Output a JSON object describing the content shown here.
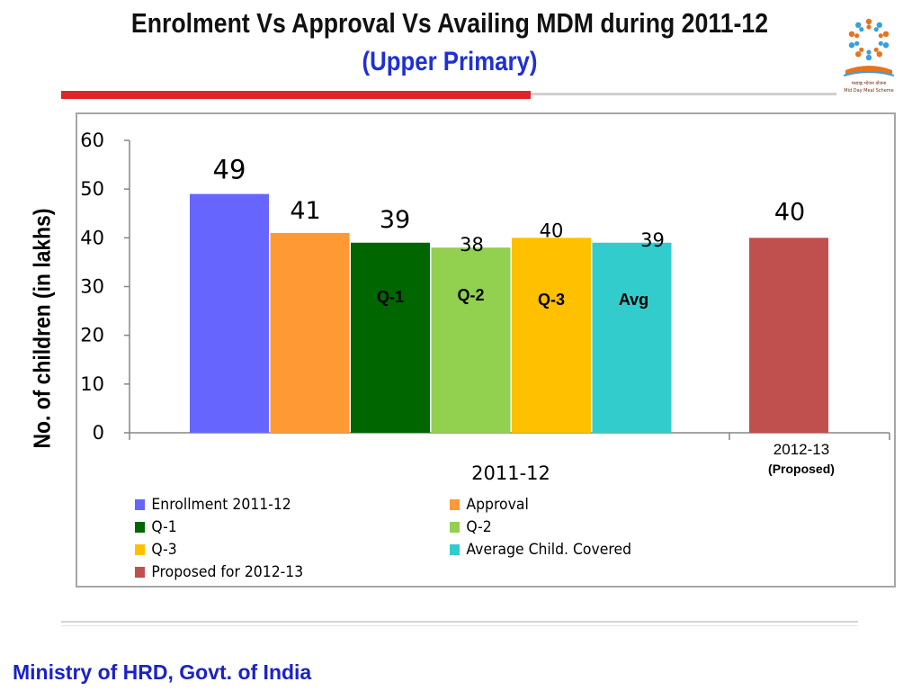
{
  "slide": {
    "title": "Enrolment Vs Approval Vs Availing MDM during  2011-12",
    "subtitle": "(Upper Primary)",
    "logo": {
      "icon": "mid-day-meal-logo",
      "text_hindi": "मध्याह्न भोजन योजना",
      "text_english": "Mid Day Meal Scheme",
      "colors": [
        "#e8731e",
        "#3aa0d8"
      ]
    },
    "footer": "Ministry of HRD, Govt. of India"
  },
  "chart_data": {
    "type": "bar",
    "ylabel": "No. of children (in lakhs)",
    "ylim": [
      0,
      60
    ],
    "yticks": [
      0,
      10,
      20,
      30,
      40,
      50,
      60
    ],
    "grid": false,
    "legend_position": "bottom",
    "groups": [
      {
        "label": "2011-12",
        "sublabel": ""
      },
      {
        "label": "2012-13",
        "sublabel": "(Proposed)"
      }
    ],
    "series": [
      {
        "name": "Enrollment 2011-12",
        "value": 49,
        "group": 0,
        "color": "#6666ff",
        "bar_text": ""
      },
      {
        "name": "Approval",
        "value": 41,
        "group": 0,
        "color": "#ff9933",
        "bar_text": ""
      },
      {
        "name": "Q-1",
        "value": 39,
        "group": 0,
        "color": "#006600",
        "bar_text": "Q-1"
      },
      {
        "name": "Q-2",
        "value": 38,
        "group": 0,
        "color": "#92d050",
        "bar_text": "Q-2"
      },
      {
        "name": "Q-3",
        "value": 40,
        "group": 0,
        "color": "#ffc000",
        "bar_text": "Q-3"
      },
      {
        "name": "Average Child. Covered",
        "value": 39,
        "group": 0,
        "color": "#33cccc",
        "bar_text": "Avg"
      },
      {
        "name": "Proposed for 2012-13",
        "value": 40,
        "group": 1,
        "color": "#c0504d",
        "bar_text": ""
      }
    ]
  }
}
